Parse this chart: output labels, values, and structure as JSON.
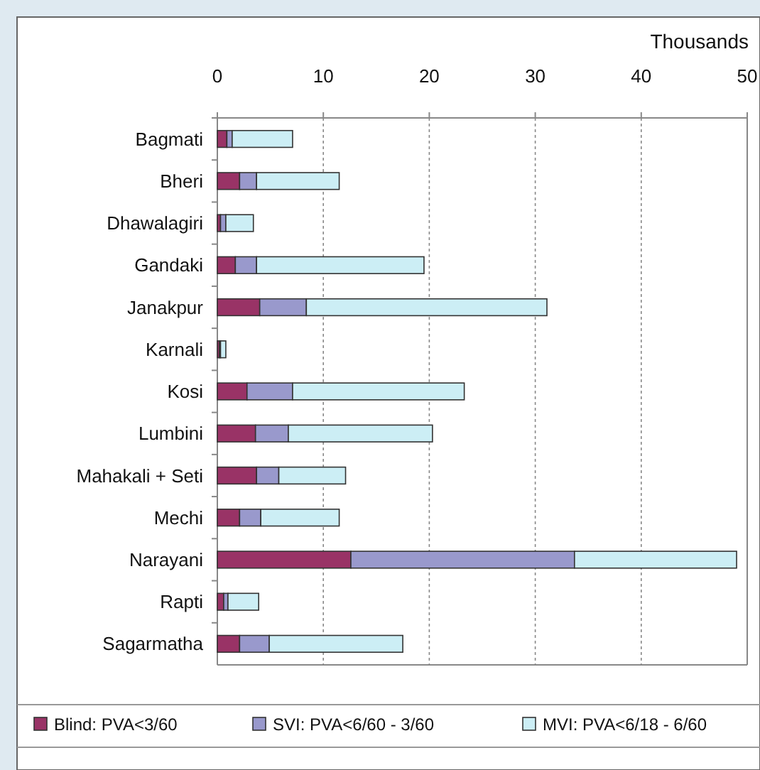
{
  "chart_data": {
    "type": "bar",
    "orientation": "horizontal",
    "stacked": true,
    "xlabel": "Thousands",
    "categories": [
      "Bagmati",
      "Bheri",
      "Dhawalagiri",
      "Gandaki",
      "Janakpur",
      "Karnali",
      "Kosi",
      "Lumbini",
      "Mahakali + Seti",
      "Mechi",
      "Narayani",
      "Rapti",
      "Sagarmatha"
    ],
    "series": [
      {
        "name": "Blind: PVA<3/60",
        "color": "#993366",
        "values": [
          0.9,
          2.1,
          0.3,
          1.7,
          4.0,
          0.2,
          2.8,
          3.6,
          3.7,
          2.1,
          12.6,
          0.6,
          2.1
        ]
      },
      {
        "name": "SVI: PVA<6/60 - 3/60",
        "color": "#9999cc",
        "values": [
          0.5,
          1.6,
          0.5,
          2.0,
          4.4,
          0.1,
          4.3,
          3.1,
          2.1,
          2.0,
          21.1,
          0.4,
          2.8
        ]
      },
      {
        "name": "MVI: PVA<6/18 - 6/60",
        "color": "#cceef5",
        "values": [
          5.7,
          7.8,
          2.6,
          15.8,
          22.7,
          0.5,
          16.2,
          13.6,
          6.3,
          7.4,
          15.3,
          2.9,
          12.6
        ]
      }
    ],
    "xlim": [
      0,
      50
    ],
    "xticks": [
      0,
      10,
      20,
      30,
      40,
      50
    ],
    "grid": "x",
    "legend": "bottom"
  }
}
